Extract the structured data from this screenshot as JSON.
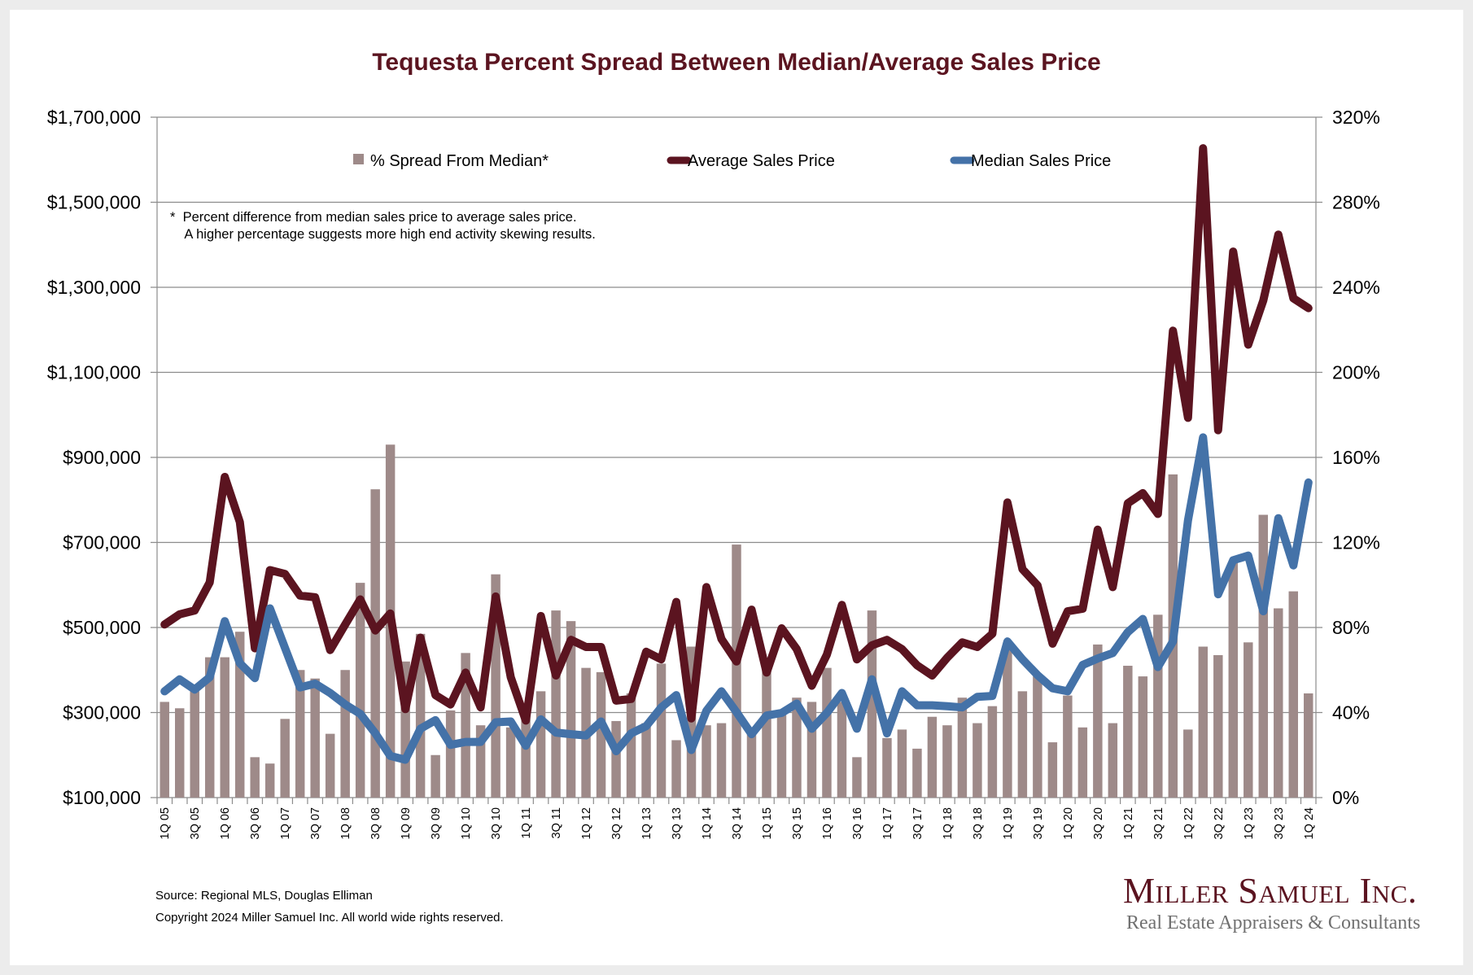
{
  "source": "Source: Regional MLS, Douglas Elliman",
  "copyright": "Copyright 2024 Miller Samuel Inc.  All world wide rights reserved.",
  "logo": {
    "name": "Miller Samuel Inc.",
    "tagline": "Real Estate Appraisers & Consultants"
  },
  "colors": {
    "title": "#5b1420",
    "bars": "#9e8a89",
    "average": "#5b1420",
    "median": "#4472a8",
    "grid": "#8c8c8c"
  },
  "chart_data": {
    "type": "bar+line",
    "title": "Tequesta Percent Spread Between Median/Average Sales Price",
    "note_lines": [
      "*  Percent difference from median sales price to average sales price.",
      "    A higher percentage suggests more high end activity skewing results."
    ],
    "legend_position": "top-center",
    "grid": true,
    "y_left": {
      "range": [
        100000,
        1700000
      ],
      "ticks": [
        100000,
        300000,
        500000,
        700000,
        900000,
        1100000,
        1300000,
        1500000,
        1700000
      ],
      "tick_labels": [
        "$100,000",
        "$300,000",
        "$500,000",
        "$700,000",
        "$900,000",
        "$1,100,000",
        "$1,300,000",
        "$1,500,000",
        "$1,700,000"
      ]
    },
    "y_right": {
      "range": [
        0,
        320
      ],
      "ticks": [
        0,
        40,
        80,
        120,
        160,
        200,
        240,
        280,
        320
      ],
      "tick_labels": [
        "0%",
        "40%",
        "80%",
        "120%",
        "160%",
        "200%",
        "240%",
        "280%",
        "320%"
      ]
    },
    "categories": [
      "1Q 05",
      "2Q 05",
      "3Q 05",
      "4Q 05",
      "1Q 06",
      "2Q 06",
      "3Q 06",
      "4Q 06",
      "1Q 07",
      "2Q 07",
      "3Q 07",
      "4Q 07",
      "1Q 08",
      "2Q 08",
      "3Q 08",
      "4Q 08",
      "1Q 09",
      "2Q 09",
      "3Q 09",
      "4Q 09",
      "1Q 10",
      "2Q 10",
      "3Q 10",
      "4Q 10",
      "1Q 11",
      "2Q 11",
      "3Q 11",
      "4Q 11",
      "1Q 12",
      "2Q 12",
      "3Q 12",
      "4Q 12",
      "1Q 13",
      "2Q 13",
      "3Q 13",
      "4Q 13",
      "1Q 14",
      "2Q 14",
      "3Q 14",
      "4Q 14",
      "1Q 15",
      "2Q 15",
      "3Q 15",
      "4Q 15",
      "1Q 16",
      "2Q 16",
      "3Q 16",
      "4Q 16",
      "1Q 17",
      "2Q 17",
      "3Q 17",
      "4Q 17",
      "1Q 18",
      "2Q 18",
      "3Q 18",
      "4Q 18",
      "1Q 19",
      "2Q 19",
      "3Q 19",
      "4Q 19",
      "1Q 20",
      "2Q 20",
      "3Q 20",
      "4Q 20",
      "1Q 21",
      "2Q 21",
      "3Q 21",
      "4Q 21",
      "1Q 22",
      "2Q 22",
      "3Q 22",
      "4Q 22",
      "1Q 23",
      "2Q 23",
      "3Q 23",
      "4Q 23",
      "1Q 24"
    ],
    "x_tick_labels_shown_every": 2,
    "series": [
      {
        "name": "% Spread From Median*",
        "type": "bar",
        "axis": "right",
        "values": [
          45,
          42,
          50,
          66,
          66,
          78,
          19,
          16,
          37,
          60,
          56,
          30,
          60,
          101,
          145,
          166,
          64,
          77,
          20,
          41,
          68,
          34,
          105,
          33,
          41,
          50,
          88,
          83,
          61,
          59,
          36,
          49,
          35,
          63,
          27,
          71,
          34,
          35,
          119,
          32,
          64,
          39,
          47,
          45,
          61,
          45,
          19,
          88,
          28,
          32,
          23,
          38,
          34,
          47,
          35,
          43,
          71,
          50,
          57,
          26,
          48,
          33,
          72,
          35,
          62,
          57,
          86,
          152,
          32,
          71,
          67,
          111,
          73,
          133,
          89,
          97,
          49
        ]
      },
      {
        "name": "Average Sales Price",
        "type": "line",
        "axis": "left",
        "values": [
          507000,
          531000,
          540000,
          606000,
          854000,
          748000,
          451000,
          635000,
          626000,
          575000,
          571000,
          447000,
          507000,
          566000,
          493000,
          533000,
          308000,
          476000,
          341000,
          319000,
          394000,
          312000,
          573000,
          383000,
          281000,
          527000,
          387000,
          471000,
          454000,
          454000,
          328000,
          332000,
          443000,
          425000,
          560000,
          286000,
          595000,
          473000,
          420000,
          542000,
          394000,
          498000,
          449000,
          363000,
          436000,
          553000,
          425000,
          458000,
          471000,
          449000,
          411000,
          387000,
          429000,
          465000,
          454000,
          485000,
          794000,
          637000,
          599000,
          462000,
          538000,
          544000,
          730000,
          595000,
          792000,
          816000,
          767000,
          1198000,
          993000,
          1627000,
          964000,
          1384000,
          1165000,
          1269000,
          1424000,
          1274000,
          1251000
        ]
      },
      {
        "name": "Median Sales Price",
        "type": "line",
        "axis": "left",
        "values": [
          350000,
          378000,
          354000,
          383000,
          515000,
          416000,
          381000,
          545000,
          452000,
          359000,
          368000,
          346000,
          319000,
          297000,
          251000,
          198000,
          189000,
          262000,
          282000,
          224000,
          231000,
          231000,
          277000,
          279000,
          222000,
          284000,
          253000,
          249000,
          246000,
          279000,
          209000,
          251000,
          268000,
          312000,
          341000,
          212000,
          304000,
          350000,
          301000,
          249000,
          293000,
          299000,
          321000,
          262000,
          299000,
          346000,
          262000,
          378000,
          251000,
          350000,
          317000,
          317000,
          315000,
          312000,
          337000,
          339000,
          467000,
          425000,
          388000,
          357000,
          350000,
          412000,
          427000,
          440000,
          489000,
          520000,
          407000,
          467000,
          752000,
          947000,
          578000,
          658000,
          669000,
          538000,
          757000,
          646000,
          841000
        ]
      }
    ]
  }
}
